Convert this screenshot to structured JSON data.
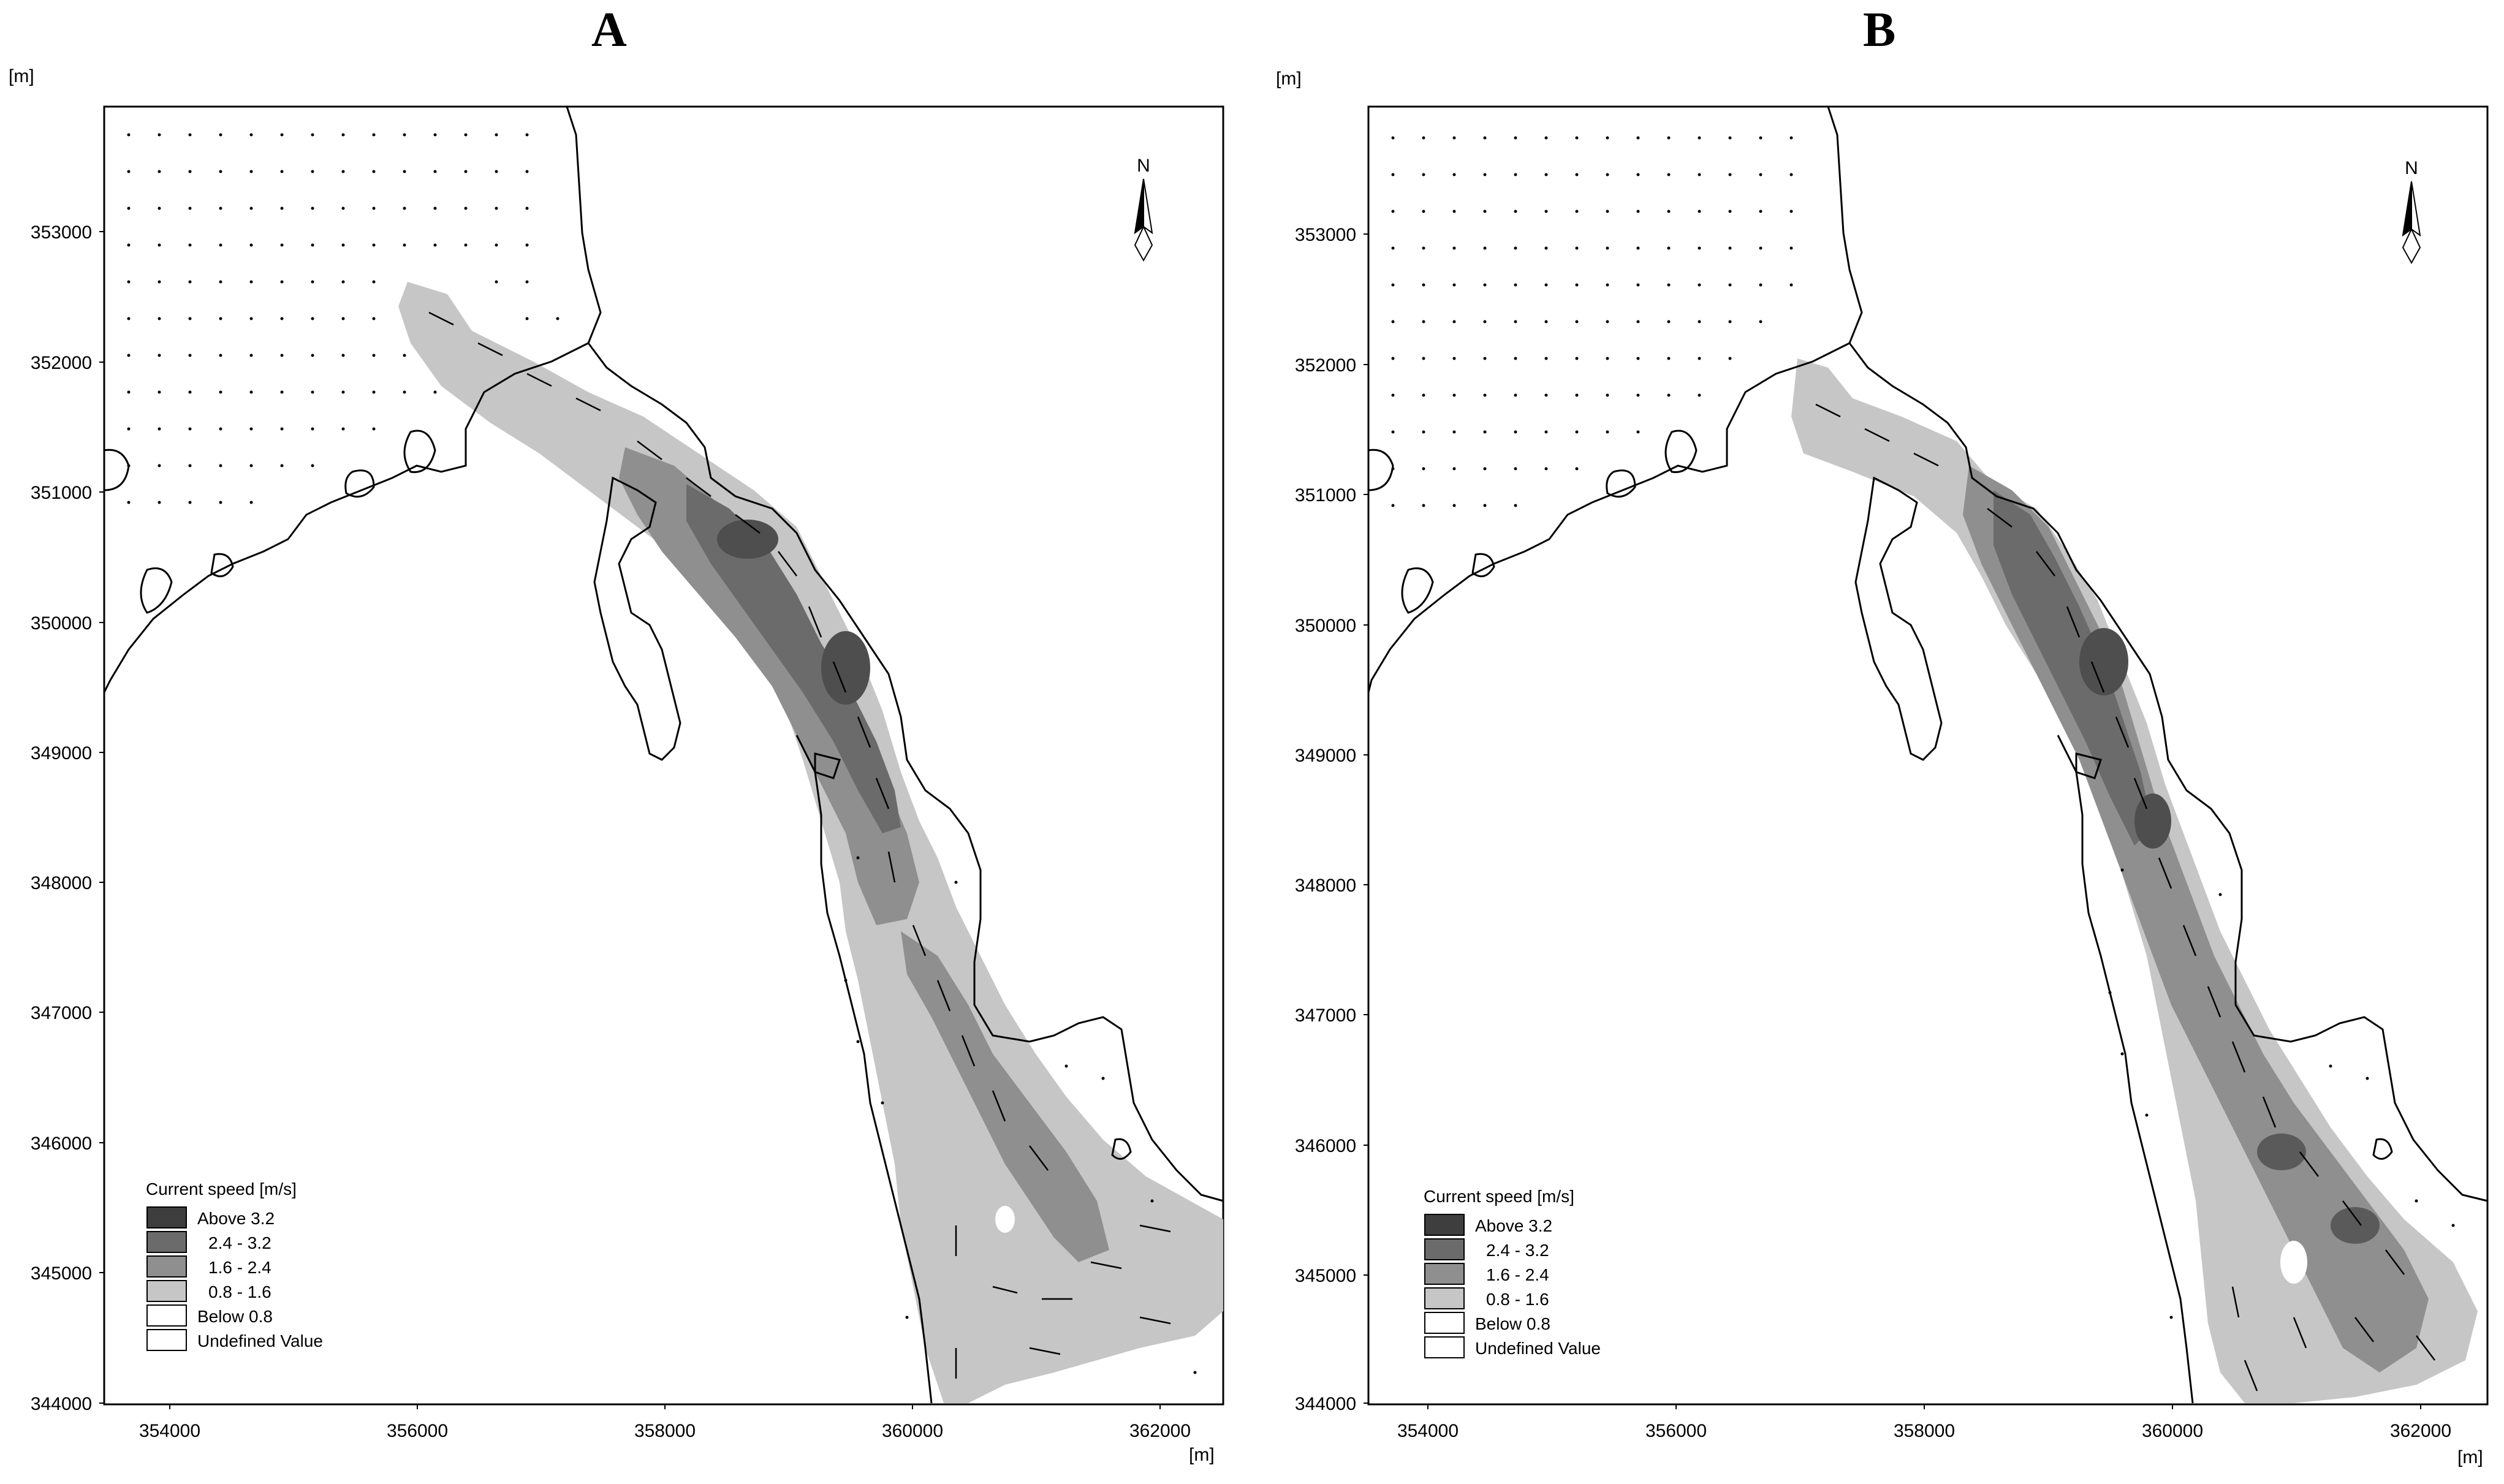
{
  "panels": [
    {
      "letter": "A",
      "unit_y": "[m]",
      "unit_x": "[m]",
      "y_ticks": [
        "353000",
        "352000",
        "351000",
        "350000",
        "349000",
        "348000",
        "347000",
        "346000",
        "345000",
        "344000"
      ],
      "x_ticks": [
        "354000",
        "356000",
        "358000",
        "360000",
        "362000"
      ],
      "north_label": "N",
      "legend": {
        "title": "Current speed [m/s]",
        "items": [
          "Above 3.2",
          "2.4 - 3.2",
          "1.6 - 2.4",
          "0.8 - 1.6",
          "Below 0.8",
          "Undefined Value"
        ],
        "colors": [
          "#3e3e3e",
          "#6b6b6b",
          "#8f8f8f",
          "#c6c6c6",
          "#ffffff",
          "#ffffff"
        ]
      }
    },
    {
      "letter": "B",
      "unit_y": "[m]",
      "unit_x": "[m]",
      "y_ticks": [
        "353000",
        "352000",
        "351000",
        "350000",
        "349000",
        "348000",
        "347000",
        "346000",
        "345000",
        "344000"
      ],
      "x_ticks": [
        "354000",
        "356000",
        "358000",
        "360000",
        "362000"
      ],
      "north_label": "N",
      "legend": {
        "title": "Current speed [m/s]",
        "items": [
          "Above 3.2",
          "2.4 - 3.2",
          "1.6 - 2.4",
          "0.8 - 1.6",
          "Below 0.8",
          "Undefined Value"
        ],
        "colors": [
          "#3e3e3e",
          "#6b6b6b",
          "#8f8f8f",
          "#c6c6c6",
          "#ffffff",
          "#ffffff"
        ]
      }
    }
  ]
}
